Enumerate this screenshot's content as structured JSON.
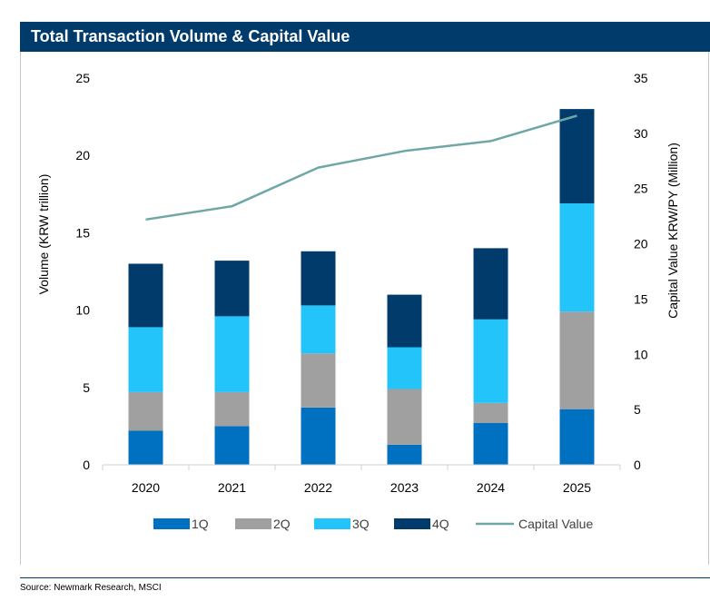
{
  "header": {
    "title": "Total Transaction Volume & Capital Value"
  },
  "footer": {
    "source": "Source: Newmark Research, MSCI"
  },
  "chart_data": {
    "type": "bar",
    "stacked": true,
    "categories": [
      "2020",
      "2021",
      "2022",
      "2023",
      "2024",
      "2025"
    ],
    "series": [
      {
        "name": "1Q",
        "values": [
          2.2,
          2.5,
          3.7,
          1.3,
          2.7,
          3.6
        ],
        "color": "#0070c0"
      },
      {
        "name": "2Q",
        "values": [
          2.5,
          2.2,
          3.5,
          3.6,
          1.3,
          6.3
        ],
        "color": "#a0a0a0"
      },
      {
        "name": "3Q",
        "values": [
          4.2,
          4.9,
          3.1,
          2.7,
          5.4,
          7.0
        ],
        "color": "#23c4fa"
      },
      {
        "name": "4Q",
        "values": [
          4.1,
          3.6,
          3.5,
          3.4,
          4.6,
          6.1
        ],
        "color": "#003b6b"
      }
    ],
    "line_series": {
      "name": "Capital Value",
      "axis": "right",
      "values": [
        22.2,
        23.4,
        26.9,
        28.4,
        29.3,
        31.6
      ],
      "color": "#6fa7a7"
    },
    "ylabel": "Volume (KRW trillion)",
    "ylim": [
      0,
      25
    ],
    "yticks": [
      "0",
      "5",
      "10",
      "15",
      "20",
      "25"
    ],
    "y2label": "Capital Value KRW/PY (Million)",
    "y2lim": [
      0,
      35
    ],
    "y2ticks": [
      "0",
      "5",
      "10",
      "15",
      "20",
      "25",
      "30",
      "35"
    ],
    "grid": false,
    "legend_position": "bottom"
  }
}
